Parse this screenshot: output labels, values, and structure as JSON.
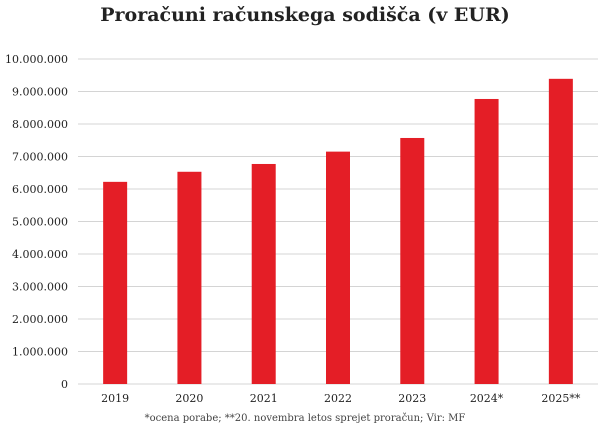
{
  "chart_data": {
    "type": "bar",
    "title": "Proračuni računskega sodišča (v EUR)",
    "categories": [
      "2019",
      "2020",
      "2021",
      "2022",
      "2023",
      "2024*",
      "2025**"
    ],
    "values": [
      6220000,
      6530000,
      6770000,
      7150000,
      7570000,
      8770000,
      9390000
    ],
    "y_ticks": [
      "0",
      "1.000.000",
      "2.000.000",
      "3.000.000",
      "4.000.000",
      "5.000.000",
      "6.000.000",
      "7.000.000",
      "8.000.000",
      "9.000.000",
      "10.000.000"
    ],
    "y_tick_values": [
      0,
      1000000,
      2000000,
      3000000,
      4000000,
      5000000,
      6000000,
      7000000,
      8000000,
      9000000,
      10000000
    ],
    "ylim": [
      0,
      10000000
    ],
    "xlabel": "",
    "ylabel": "",
    "grid": "horizontal",
    "bar_color": "#e41e26",
    "grid_color": "#d4d4d4",
    "footnote": "*ocena porabe; **20. novembra letos sprejet proračun; Vir: MF"
  }
}
